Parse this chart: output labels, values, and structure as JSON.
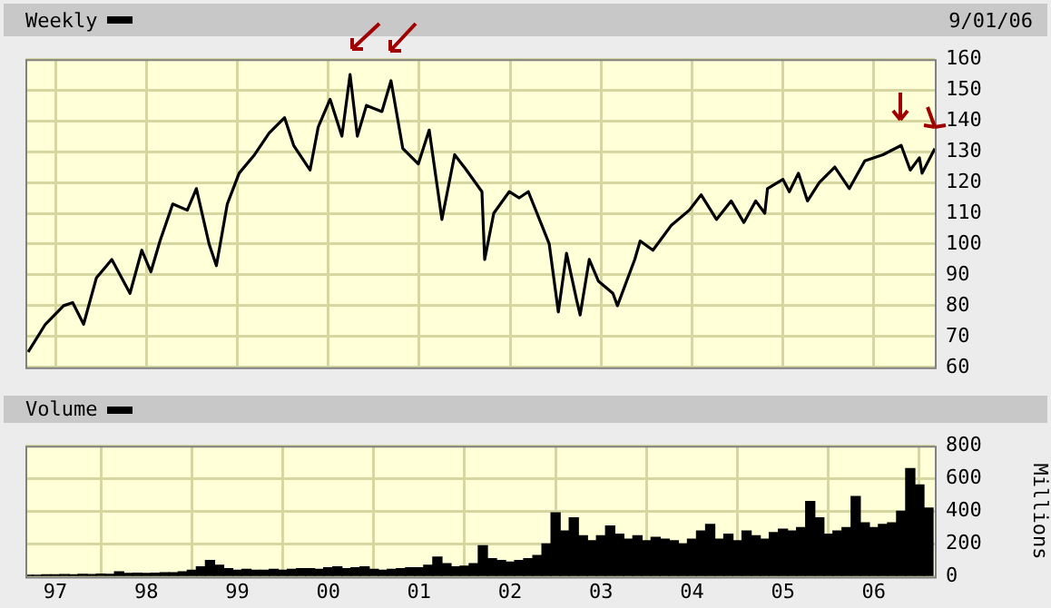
{
  "chart_data": [
    {
      "type": "line",
      "legend": "top left",
      "marker": "none",
      "grid": true,
      "tick_labels": "y",
      "annotations": [
        "9/01/06"
      ],
      "xlim": [
        1996.67,
        2006.67
      ],
      "xticks": [
        {
          "value": 1997,
          "label": null
        },
        {
          "value": 1998,
          "label": null
        },
        {
          "value": 1999,
          "label": null
        },
        {
          "value": 2000,
          "label": null
        },
        {
          "value": 2001,
          "label": null
        },
        {
          "value": 2002,
          "label": null
        },
        {
          "value": 2003,
          "label": null
        },
        {
          "value": 2004,
          "label": null
        },
        {
          "value": 2005,
          "label": null
        },
        {
          "value": 2006,
          "label": null
        }
      ],
      "ylim": [
        60,
        160
      ],
      "yticks": [
        60,
        70,
        80,
        90,
        100,
        110,
        120,
        130,
        140,
        150,
        160
      ],
      "series": [
        {
          "name": "Weekly",
          "color": "#000000",
          "x": [
            1996.7,
            1996.89,
            1997.09,
            1997.19,
            1997.31,
            1997.45,
            1997.62,
            1997.82,
            1997.95,
            1998.05,
            1998.15,
            1998.29,
            1998.45,
            1998.55,
            1998.69,
            1998.77,
            1998.89,
            1999.02,
            1999.19,
            1999.35,
            1999.52,
            1999.62,
            1999.8,
            1999.89,
            2000.02,
            2000.15,
            2000.24,
            2000.32,
            2000.42,
            2000.59,
            2000.69,
            2000.82,
            2000.99,
            2001.11,
            2001.25,
            2001.39,
            2001.52,
            2001.69,
            2001.72,
            2001.82,
            2001.99,
            2002.1,
            2002.2,
            2002.35,
            2002.43,
            2002.53,
            2002.62,
            2002.73,
            2002.77,
            2002.87,
            2002.97,
            2003.13,
            2003.18,
            2003.37,
            2003.43,
            2003.57,
            2003.77,
            2003.97,
            2004.1,
            2004.27,
            2004.43,
            2004.57,
            2004.7,
            2004.8,
            2004.83,
            2005.0,
            2005.07,
            2005.17,
            2005.27,
            2005.4,
            2005.57,
            2005.73,
            2005.9,
            2006.1,
            2006.3,
            2006.4,
            2006.5,
            2006.53,
            2006.67
          ],
          "values": [
            65,
            74,
            80,
            81,
            74,
            89,
            95,
            84,
            98,
            91,
            101,
            113,
            111,
            118,
            100,
            93,
            113,
            123,
            129,
            136,
            141,
            132,
            124,
            138,
            147,
            135,
            155,
            135,
            145,
            143,
            153,
            131,
            126,
            137,
            108,
            129,
            124,
            117,
            95,
            110,
            117,
            115,
            117,
            106,
            100,
            78,
            97,
            82,
            77,
            95,
            88,
            84,
            80,
            95,
            101,
            98,
            106,
            111,
            116,
            108,
            114,
            107,
            114,
            110,
            118,
            121,
            117,
            123,
            114,
            120,
            125,
            118,
            127,
            129,
            132,
            124,
            128,
            123,
            131
          ]
        }
      ]
    },
    {
      "type": "bar",
      "legend": "top left",
      "grid": true,
      "ylabel": "Millions",
      "xlim": [
        1996.67,
        2006.67
      ],
      "xticks": [
        {
          "value": 1997,
          "label": "97"
        },
        {
          "value": 1998,
          "label": "98"
        },
        {
          "value": 1999,
          "label": "99"
        },
        {
          "value": 2000,
          "label": "00"
        },
        {
          "value": 2001,
          "label": "01"
        },
        {
          "value": 2002,
          "label": "02"
        },
        {
          "value": 2003,
          "label": "03"
        },
        {
          "value": 2004,
          "label": "04"
        },
        {
          "value": 2005,
          "label": "05"
        },
        {
          "value": 2006,
          "label": "06"
        }
      ],
      "ylim": [
        0,
        800
      ],
      "yticks": [
        0,
        200,
        400,
        600,
        800
      ],
      "series": [
        {
          "name": "Volume",
          "color": "#000000",
          "x": [
            1996.7,
            1996.8,
            1996.9,
            1997.0,
            1997.1,
            1997.2,
            1997.3,
            1997.4,
            1997.5,
            1997.6,
            1997.7,
            1997.8,
            1997.9,
            1998.0,
            1998.1,
            1998.2,
            1998.3,
            1998.4,
            1998.5,
            1998.6,
            1998.7,
            1998.8,
            1998.9,
            1999.0,
            1999.1,
            1999.2,
            1999.3,
            1999.4,
            1999.5,
            1999.6,
            1999.7,
            1999.8,
            1999.9,
            2000.0,
            2000.1,
            2000.2,
            2000.3,
            2000.4,
            2000.5,
            2000.6,
            2000.7,
            2000.8,
            2000.9,
            2001.0,
            2001.1,
            2001.2,
            2001.3,
            2001.4,
            2001.5,
            2001.6,
            2001.7,
            2001.8,
            2001.9,
            2002.0,
            2002.1,
            2002.2,
            2002.3,
            2002.4,
            2002.5,
            2002.6,
            2002.7,
            2002.8,
            2002.9,
            2003.0,
            2003.1,
            2003.2,
            2003.3,
            2003.4,
            2003.5,
            2003.6,
            2003.7,
            2003.8,
            2003.9,
            2004.0,
            2004.1,
            2004.2,
            2004.3,
            2004.4,
            2004.5,
            2004.6,
            2004.7,
            2004.8,
            2004.9,
            2005.0,
            2005.1,
            2005.2,
            2005.3,
            2005.4,
            2005.5,
            2005.6,
            2005.7,
            2005.8,
            2005.9,
            2006.0,
            2006.1,
            2006.2,
            2006.3,
            2006.4,
            2006.5,
            2006.6
          ],
          "values": [
            10,
            10,
            12,
            12,
            14,
            12,
            15,
            14,
            16,
            15,
            30,
            20,
            22,
            20,
            22,
            25,
            25,
            30,
            40,
            60,
            100,
            70,
            50,
            40,
            45,
            40,
            40,
            45,
            40,
            45,
            50,
            50,
            45,
            55,
            60,
            50,
            55,
            60,
            45,
            40,
            45,
            50,
            55,
            55,
            70,
            120,
            80,
            60,
            65,
            80,
            190,
            110,
            100,
            90,
            100,
            110,
            130,
            200,
            390,
            280,
            360,
            250,
            220,
            250,
            310,
            260,
            230,
            250,
            220,
            240,
            230,
            220,
            200,
            230,
            280,
            320,
            230,
            260,
            220,
            280,
            250,
            230,
            270,
            290,
            280,
            300,
            460,
            360,
            260,
            280,
            300,
            490,
            330,
            300,
            320,
            330,
            400,
            660,
            560,
            420
          ]
        }
      ]
    }
  ]
}
